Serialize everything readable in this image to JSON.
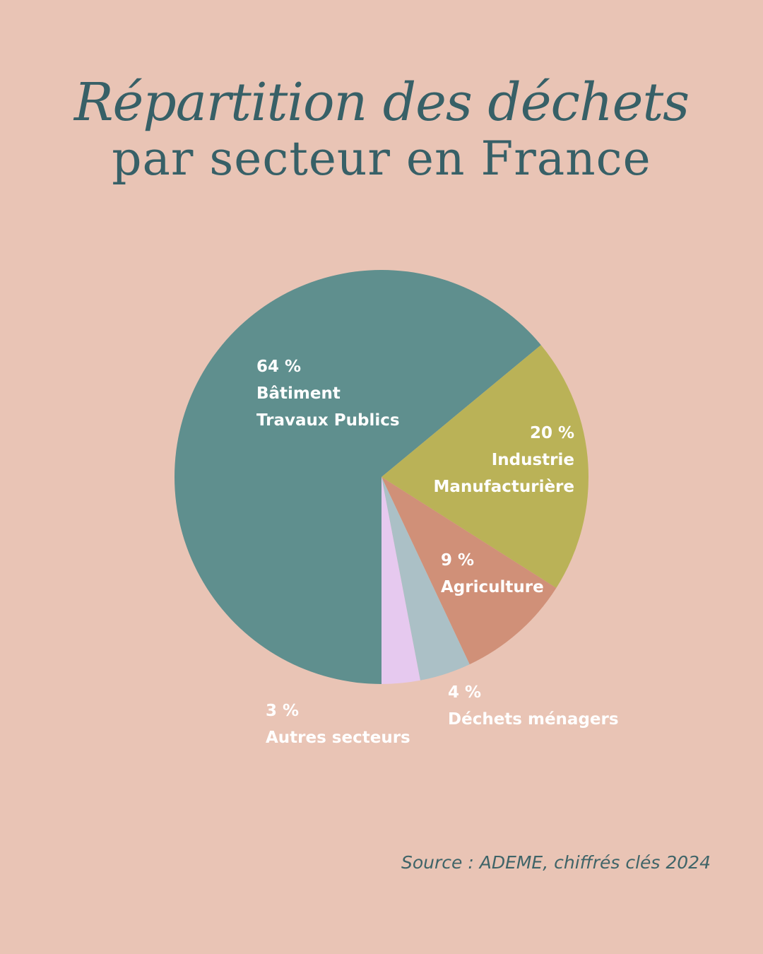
{
  "title": {
    "line1": "Répartition des déchets",
    "line2": "par secteur en France"
  },
  "source": "Source : ADEME, chiffrés clés 2024",
  "chart_data": {
    "type": "pie",
    "unit": "%",
    "slices": [
      {
        "label_lines": [
          "Bâtiment",
          "Travaux Publics"
        ],
        "value": 64,
        "value_label": "64 %",
        "color": "#5f8f8e"
      },
      {
        "label_lines": [
          "Industrie",
          "Manufacturière"
        ],
        "value": 20,
        "value_label": "20 %",
        "color": "#bab257"
      },
      {
        "label_lines": [
          "Agriculture"
        ],
        "value": 9,
        "value_label": "9 %",
        "color": "#d09078"
      },
      {
        "label_lines": [
          "Déchets ménagers"
        ],
        "value": 4,
        "value_label": "4 %",
        "color": "#abc0c6"
      },
      {
        "label_lines": [
          "Autres secteurs"
        ],
        "value": 3,
        "value_label": "3 %",
        "color": "#e6c9ef"
      }
    ]
  }
}
